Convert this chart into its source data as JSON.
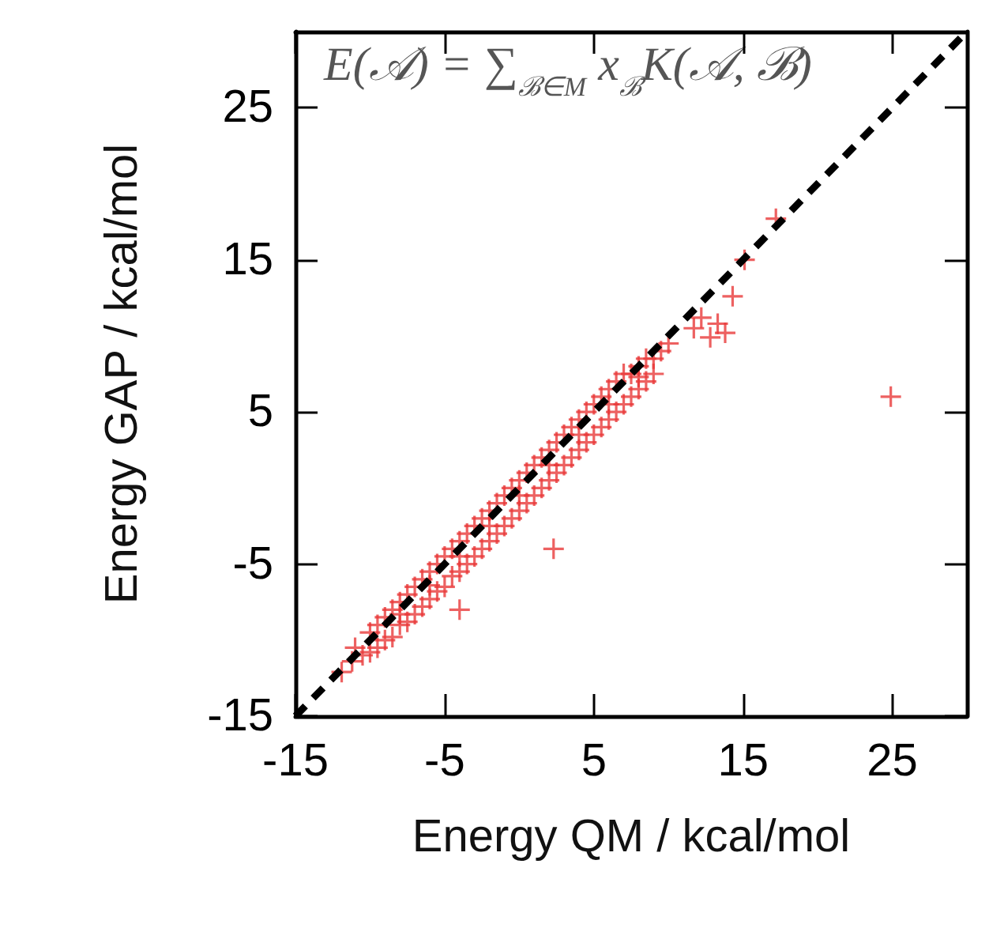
{
  "chart_data": {
    "type": "scatter",
    "xlabel": "Energy QM / kcal/mol",
    "ylabel": "Energy GAP / kcal/mol",
    "annotations": [
      "E(𝒜) = ∑$_{ℬ∈M}$ x$_{ℬ}$K(𝒜, ℬ)"
    ],
    "xlim": [
      -15,
      30
    ],
    "ylim": [
      -15,
      30
    ],
    "xticks": [
      -15,
      -5,
      5,
      15,
      25
    ],
    "yticks": [
      -15,
      -5,
      5,
      15,
      25
    ],
    "grid": false,
    "marker": "cross",
    "series": [
      {
        "color": "#e8393a",
        "x": [
          -11,
          -10.5,
          -10,
          -10,
          -9.5,
          -9.5,
          -9,
          -9,
          -8.5,
          -8.5,
          -8,
          -8,
          -7.5,
          -7.5,
          -7,
          -7,
          -6.5,
          -6.5,
          -6,
          -6,
          -5.5,
          -5.5,
          -5,
          -5,
          -4.5,
          -4.5,
          -4,
          -4,
          -3.5,
          -3.5,
          -3,
          -3,
          -2.5,
          -2.5,
          -2,
          -2,
          -1.5,
          -1.5,
          -1,
          -1,
          -0.5,
          -0.5,
          0,
          0,
          0.5,
          0.5,
          1,
          1,
          1.5,
          1.5,
          2,
          2,
          2.5,
          2.5,
          3,
          3,
          3.5,
          3.5,
          4,
          4,
          4.5,
          4.5,
          5,
          5,
          5.5,
          5.5,
          6,
          6,
          6.5,
          6.5,
          7,
          7,
          7.5,
          7.5,
          8,
          8,
          8.5,
          8.5,
          9,
          9,
          9.5,
          10,
          -8,
          -6,
          -4,
          -2,
          0,
          2,
          4,
          6,
          8,
          -11.9,
          -11.2,
          -4,
          2.3,
          11.7,
          12.2,
          12.8,
          13.3,
          13.8,
          14.3,
          15.1,
          17.2,
          24.9
        ],
        "values": [
          -10.5,
          -11,
          -9.5,
          -10.8,
          -9,
          -10.5,
          -8.5,
          -10,
          -8,
          -9.8,
          -7.5,
          -9,
          -7,
          -8.8,
          -6.5,
          -8.3,
          -6,
          -7.8,
          -5.5,
          -7.3,
          -5,
          -6.8,
          -4.5,
          -6.5,
          -4,
          -5.8,
          -3.5,
          -5.5,
          -3,
          -5,
          -2.5,
          -4.5,
          -2,
          -4,
          -1.5,
          -3.5,
          -1,
          -3,
          -0.5,
          -2.5,
          0,
          -2,
          0.5,
          -1.5,
          1,
          -1,
          1.5,
          -0.5,
          2,
          0,
          2.5,
          0.5,
          3,
          1,
          3.5,
          1.5,
          4,
          2,
          4.5,
          2.5,
          5,
          3,
          5.5,
          3.5,
          6,
          4,
          6.5,
          4.5,
          7,
          5,
          7.5,
          5.5,
          7.5,
          6,
          8,
          6.5,
          8.5,
          7,
          8.5,
          7.5,
          9,
          9.5,
          -8.3,
          -6.4,
          -4.5,
          -2.5,
          -0.5,
          1.5,
          3.5,
          5.5,
          7.3,
          -12.1,
          -11.4,
          -8,
          -4,
          10.5,
          11.2,
          9.9,
          10.8,
          10.2,
          12.6,
          15,
          17.7,
          6
        ]
      },
      {
        "type": "line",
        "color": "#000000",
        "line_style": "dashed",
        "marker": "none",
        "x": [
          -15,
          30
        ],
        "values": [
          -15,
          30
        ]
      }
    ]
  }
}
